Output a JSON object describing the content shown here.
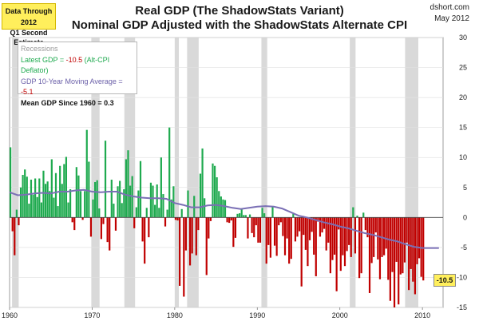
{
  "header": {
    "note_line1": "Data Through 2012",
    "note_line2": "Q1 Second Estimate",
    "title_line1": "Real GDP (The ShadowStats Variant)",
    "title_line2": "Nominal GDP Adjusted with the ShadowStats Alternate CPI",
    "source": "dshort.com",
    "date": "May 2012"
  },
  "legend": {
    "recessions": "Recessions",
    "latest_label": "Latest GDP = ",
    "latest_value": "-10.5",
    "latest_suffix": "  (Alt-CPI Deflator)",
    "ma_label": "GDP 10-Year Moving Average = ",
    "ma_value": "-5.1",
    "mean_text": "Mean GDP  Since 1960 = 0.3"
  },
  "callout": "-10.5",
  "colors": {
    "positive": "#1faa4f",
    "negative": "#c00000",
    "moving_avg": "#7a6fb5",
    "recession": "#d9d9d9",
    "callout_bg": "#ffef5c"
  },
  "chart_data": {
    "type": "bar",
    "title": "Real GDP (The ShadowStats Variant)",
    "subtitle": "Nominal GDP Adjusted with the ShadowStats Alternate CPI",
    "ylim": [
      -15,
      30
    ],
    "yticks": [
      -15,
      -10,
      -5,
      0,
      5,
      10,
      15,
      20,
      25,
      30
    ],
    "xlim": [
      1960,
      2012.5
    ],
    "xticks": [
      1960,
      1970,
      1980,
      1990,
      2000,
      2010
    ],
    "grid": true,
    "recessions": [
      [
        1960.3,
        1961.1
      ],
      [
        1969.9,
        1970.9
      ],
      [
        1973.9,
        1975.2
      ],
      [
        1980.0,
        1980.5
      ],
      [
        1981.5,
        1982.9
      ],
      [
        1990.5,
        1991.2
      ],
      [
        2001.2,
        2001.9
      ],
      [
        2007.9,
        2009.5
      ]
    ],
    "quarters_start": 1960.0,
    "quarterly_values": [
      11.7,
      -2.3,
      -6.3,
      1.3,
      -1.3,
      5.0,
      7.1,
      8.0,
      6.8,
      2.3,
      6.3,
      3.8,
      6.5,
      3.4,
      6.5,
      2.5,
      7.8,
      5.6,
      6.0,
      4.4,
      9.7,
      3.3,
      7.4,
      1.9,
      8.6,
      5.6,
      8.9,
      10.1,
      2.5,
      4.7,
      -0.8,
      -2.1,
      8.4,
      7.0,
      4.4,
      -0.4,
      4.4,
      14.6,
      9.3,
      -3.2,
      3.0,
      5.9,
      6.2,
      1.5,
      -3.6,
      -1.1,
      12.8,
      -4.1,
      -5.5,
      6.3,
      2.3,
      -2.2,
      5.2,
      6.1,
      2.4,
      4.7,
      9.7,
      11.2,
      5.3,
      6.9,
      -1.8,
      1.7,
      4.5,
      9.4,
      -4.0,
      -7.7,
      1.6,
      -3.3,
      5.8,
      5.3,
      2.1,
      5.5,
      1.6,
      10.0,
      3.9,
      -1.5,
      1.3,
      15.0,
      3.0,
      5.2,
      -0.4,
      -0.5,
      -11.4,
      1.4,
      -13.2,
      -5.5,
      4.5,
      -8.0,
      -6.0,
      3.6,
      -6.3,
      -2.1,
      7.3,
      11.5,
      3.2,
      -9.6,
      -3.5,
      -0.6,
      9.0,
      8.6,
      6.7,
      4.4,
      3.5,
      3.0,
      2.9,
      -0.8,
      -0.9,
      -0.5,
      -4.9,
      -3.4,
      0.6,
      0.7,
      1.5,
      0.4,
      0.4,
      -3.5,
      0.5,
      -2.6,
      -3.3,
      -1.3,
      -4.2,
      -4.2,
      1.6,
      0.7,
      -7.7,
      -4.6,
      -6.7,
      1.8,
      -4.7,
      -6.4,
      -1.3,
      -0.8,
      -3.1,
      -6.3,
      -3.5,
      -7.7,
      -6.9,
      0.6,
      -4.0,
      -3.2,
      -2.3,
      -11.5,
      -2.9,
      -5.4,
      -8.1,
      -3.8,
      -2.4,
      -6.2,
      -9.8,
      -0.7,
      -3.2,
      -2.5,
      -1.9,
      -5.5,
      -4.2,
      -9.3,
      -7.1,
      -6.2,
      -12.3,
      -2.0,
      -8.9,
      -6.3,
      -8.1,
      -5.6,
      -4.6,
      -6.6,
      1.7,
      -6.0,
      0.3,
      -10.1,
      -9.3,
      0.8,
      -2.1,
      -3.3,
      -12.6,
      -7.6,
      -6.6,
      -2.5,
      -7.0,
      -10.3,
      -6.6,
      -6.3,
      -5.2,
      -10.4,
      -13.9,
      -9.1,
      -15.0,
      -7.4,
      -14.5,
      -9.5,
      -9.3,
      -7.5,
      -4.2,
      -12.1,
      -8.6,
      -10.7,
      -12.8,
      -7.8,
      -6.8,
      -9.9,
      -10.5
    ],
    "moving_average": [
      [
        1960.0,
        4.2
      ],
      [
        1961.0,
        3.7
      ],
      [
        1962.0,
        3.8
      ],
      [
        1963.0,
        4.0
      ],
      [
        1964.0,
        4.1
      ],
      [
        1965.0,
        4.0
      ],
      [
        1966.0,
        4.3
      ],
      [
        1967.0,
        4.3
      ],
      [
        1968.0,
        4.5
      ],
      [
        1969.0,
        4.6
      ],
      [
        1970.0,
        4.3
      ],
      [
        1971.0,
        4.2
      ],
      [
        1972.0,
        4.3
      ],
      [
        1973.0,
        4.3
      ],
      [
        1974.0,
        3.8
      ],
      [
        1975.0,
        3.5
      ],
      [
        1976.0,
        3.3
      ],
      [
        1977.0,
        3.2
      ],
      [
        1978.0,
        3.2
      ],
      [
        1979.0,
        3.1
      ],
      [
        1980.0,
        2.4
      ],
      [
        1981.0,
        2.1
      ],
      [
        1982.0,
        1.7
      ],
      [
        1983.0,
        1.7
      ],
      [
        1984.0,
        2.0
      ],
      [
        1985.0,
        2.1
      ],
      [
        1986.0,
        1.9
      ],
      [
        1987.0,
        1.6
      ],
      [
        1988.0,
        1.4
      ],
      [
        1989.0,
        1.6
      ],
      [
        1990.0,
        1.8
      ],
      [
        1991.0,
        1.9
      ],
      [
        1992.0,
        1.8
      ],
      [
        1993.0,
        1.5
      ],
      [
        1994.0,
        0.9
      ],
      [
        1995.0,
        0.3
      ],
      [
        1996.0,
        0.0
      ],
      [
        1997.0,
        -0.4
      ],
      [
        1998.0,
        -0.8
      ],
      [
        1999.0,
        -1.1
      ],
      [
        2000.0,
        -1.5
      ],
      [
        2001.0,
        -1.8
      ],
      [
        2002.0,
        -2.2
      ],
      [
        2003.0,
        -2.6
      ],
      [
        2004.0,
        -2.9
      ],
      [
        2005.0,
        -3.3
      ],
      [
        2006.0,
        -3.7
      ],
      [
        2007.0,
        -4.0
      ],
      [
        2008.0,
        -4.5
      ],
      [
        2009.0,
        -4.9
      ],
      [
        2010.0,
        -5.1
      ],
      [
        2011.0,
        -5.1
      ],
      [
        2012.0,
        -5.1
      ]
    ]
  }
}
